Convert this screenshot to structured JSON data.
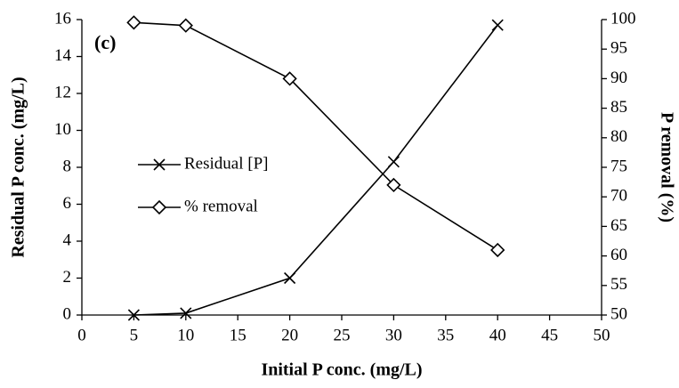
{
  "chart_data": {
    "type": "line",
    "annotation": "(c)",
    "x_label": "Initial P conc. (mg/L)",
    "y_label": "Residual P conc. (mg/L)",
    "y2_label": "P removal (%)",
    "x": [
      5,
      10,
      20,
      30,
      40
    ],
    "series": [
      {
        "name": "Residual [P]",
        "color": "#000000",
        "marker": "x",
        "values": [
          0,
          0.1,
          2,
          8.3,
          15.7
        ]
      },
      {
        "name": "% removal",
        "color": "#000000",
        "marker": "diamond",
        "axis": "y2",
        "values": [
          99.5,
          99,
          90,
          72,
          61
        ]
      }
    ],
    "xlim": [
      0,
      50
    ],
    "xticks": [
      0,
      5,
      10,
      15,
      20,
      25,
      30,
      35,
      40,
      45,
      50
    ],
    "ylim": [
      0,
      16
    ],
    "yticks": [
      0,
      2,
      4,
      6,
      8,
      10,
      12,
      14,
      16
    ],
    "y2lim": [
      50,
      100
    ],
    "y2ticks": [
      50,
      55,
      60,
      65,
      70,
      75,
      80,
      85,
      90,
      95,
      100
    ],
    "legend": "center-left",
    "grid": false
  }
}
